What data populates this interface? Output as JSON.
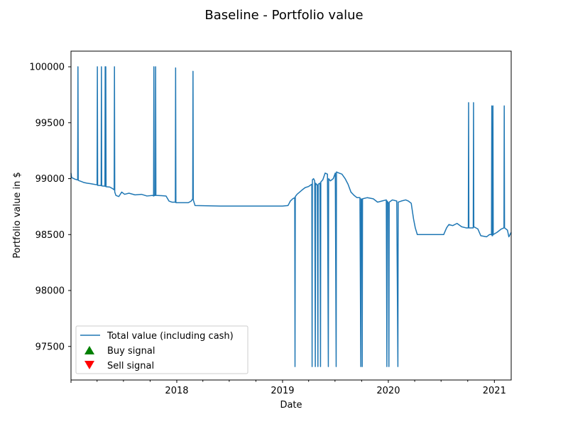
{
  "chart_data": {
    "type": "line",
    "title": "Baseline - Portfolio value",
    "xlabel": "Date",
    "ylabel": "Portfolio value in $",
    "xlim": [
      "2017-01-01",
      "2021-02-28"
    ],
    "ylim": [
      97200,
      100140
    ],
    "x_ticks": [
      "2018",
      "2019",
      "2020",
      "2021"
    ],
    "y_ticks": [
      "97500",
      "98000",
      "98500",
      "99000",
      "99500",
      "100000"
    ],
    "grid": false,
    "legend_position": "lower-left",
    "legend": [
      "Total value (including cash)",
      "Buy signal",
      "Sell signal"
    ],
    "colors": {
      "line": "#1f77b4",
      "buy": "#008000",
      "sell": "#ff0000"
    },
    "series": [
      {
        "name": "Total value (including cash)",
        "points": [
          [
            "2017-01-01",
            99050
          ],
          [
            "2017-01-03",
            99010
          ],
          [
            "2017-01-15",
            98995
          ],
          [
            "2017-01-22",
            98990
          ],
          [
            "2017-01-24",
            98990
          ],
          [
            "2017-01-25",
            100000
          ],
          [
            "2017-01-26",
            98985
          ],
          [
            "2017-02-05",
            98975
          ],
          [
            "2017-02-15",
            98965
          ],
          [
            "2017-02-25",
            98960
          ],
          [
            "2017-03-10",
            98955
          ],
          [
            "2017-03-20",
            98950
          ],
          [
            "2017-04-01",
            98945
          ],
          [
            "2017-04-02",
            100000
          ],
          [
            "2017-04-03",
            98940
          ],
          [
            "2017-04-15",
            98938
          ],
          [
            "2017-04-16",
            100000
          ],
          [
            "2017-04-17",
            98935
          ],
          [
            "2017-04-28",
            98933
          ],
          [
            "2017-04-29",
            100000
          ],
          [
            "2017-04-30",
            98930
          ],
          [
            "2017-05-01",
            100000
          ],
          [
            "2017-05-02",
            98928
          ],
          [
            "2017-05-15",
            98925
          ],
          [
            "2017-05-25",
            98910
          ],
          [
            "2017-05-30",
            98900
          ],
          [
            "2017-05-31",
            100000
          ],
          [
            "2017-06-01",
            98880
          ],
          [
            "2017-06-05",
            98850
          ],
          [
            "2017-06-15",
            98840
          ],
          [
            "2017-06-25",
            98880
          ],
          [
            "2017-07-05",
            98860
          ],
          [
            "2017-07-20",
            98870
          ],
          [
            "2017-08-10",
            98855
          ],
          [
            "2017-09-01",
            98860
          ],
          [
            "2017-09-20",
            98845
          ],
          [
            "2017-10-10",
            98850
          ],
          [
            "2017-10-13",
            98845
          ],
          [
            "2017-10-14",
            100000
          ],
          [
            "2017-10-15",
            98848
          ],
          [
            "2017-10-19",
            98850
          ],
          [
            "2017-10-20",
            100000
          ],
          [
            "2017-10-21",
            98850
          ],
          [
            "2017-11-10",
            98848
          ],
          [
            "2017-11-25",
            98845
          ],
          [
            "2017-12-05",
            98800
          ],
          [
            "2017-12-15",
            98790
          ],
          [
            "2017-12-27",
            98790
          ],
          [
            "2017-12-28",
            99990
          ],
          [
            "2017-12-29",
            98785
          ],
          [
            "2018-01-20",
            98785
          ],
          [
            "2018-02-10",
            98785
          ],
          [
            "2018-02-20",
            98800
          ],
          [
            "2018-02-25",
            98820
          ],
          [
            "2018-02-26",
            99960
          ],
          [
            "2018-02-27",
            98810
          ],
          [
            "2018-03-05",
            98760
          ],
          [
            "2018-06-01",
            98755
          ],
          [
            "2018-10-01",
            98755
          ],
          [
            "2019-01-01",
            98755
          ],
          [
            "2019-01-20",
            98760
          ],
          [
            "2019-01-28",
            98800
          ],
          [
            "2019-02-05",
            98820
          ],
          [
            "2019-02-12",
            98830
          ],
          [
            "2019-02-13",
            97320
          ],
          [
            "2019-02-14",
            98840
          ],
          [
            "2019-02-20",
            98860
          ],
          [
            "2019-03-01",
            98880
          ],
          [
            "2019-03-10",
            98900
          ],
          [
            "2019-03-20",
            98920
          ],
          [
            "2019-04-01",
            98930
          ],
          [
            "2019-04-12",
            98950
          ],
          [
            "2019-04-13",
            97320
          ],
          [
            "2019-04-14",
            98990
          ],
          [
            "2019-04-18",
            99000
          ],
          [
            "2019-04-22",
            98980
          ],
          [
            "2019-04-24",
            97320
          ],
          [
            "2019-04-25",
            98960
          ],
          [
            "2019-05-01",
            98940
          ],
          [
            "2019-05-03",
            97320
          ],
          [
            "2019-05-04",
            98950
          ],
          [
            "2019-05-10",
            98960
          ],
          [
            "2019-05-12",
            97320
          ],
          [
            "2019-05-13",
            98970
          ],
          [
            "2019-05-20",
            98990
          ],
          [
            "2019-05-28",
            99050
          ],
          [
            "2019-06-05",
            99040
          ],
          [
            "2019-06-08",
            97320
          ],
          [
            "2019-06-09",
            99000
          ],
          [
            "2019-06-15",
            98980
          ],
          [
            "2019-06-25",
            99000
          ],
          [
            "2019-07-02",
            99050
          ],
          [
            "2019-07-05",
            97320
          ],
          [
            "2019-07-06",
            99060
          ],
          [
            "2019-07-15",
            99050
          ],
          [
            "2019-07-25",
            99040
          ],
          [
            "2019-08-05",
            99000
          ],
          [
            "2019-08-15",
            98950
          ],
          [
            "2019-08-25",
            98880
          ],
          [
            "2019-09-05",
            98850
          ],
          [
            "2019-09-15",
            98830
          ],
          [
            "2019-09-25",
            98830
          ],
          [
            "2019-09-28",
            97320
          ],
          [
            "2019-09-29",
            98820
          ],
          [
            "2019-10-02",
            98810
          ],
          [
            "2019-10-03",
            97320
          ],
          [
            "2019-10-04",
            98820
          ],
          [
            "2019-10-20",
            98830
          ],
          [
            "2019-11-10",
            98820
          ],
          [
            "2019-11-25",
            98790
          ],
          [
            "2019-12-10",
            98800
          ],
          [
            "2019-12-25",
            98810
          ],
          [
            "2019-12-27",
            97320
          ],
          [
            "2019-12-28",
            98800
          ],
          [
            "2020-01-01",
            98780
          ],
          [
            "2020-01-03",
            97320
          ],
          [
            "2020-01-04",
            98790
          ],
          [
            "2020-01-15",
            98810
          ],
          [
            "2020-01-30",
            98800
          ],
          [
            "2020-02-03",
            97320
          ],
          [
            "2020-02-04",
            98790
          ],
          [
            "2020-02-15",
            98800
          ],
          [
            "2020-03-01",
            98810
          ],
          [
            "2020-03-10",
            98800
          ],
          [
            "2020-03-20",
            98780
          ],
          [
            "2020-03-28",
            98640
          ],
          [
            "2020-04-03",
            98560
          ],
          [
            "2020-04-10",
            98500
          ],
          [
            "2020-06-01",
            98500
          ],
          [
            "2020-07-10",
            98500
          ],
          [
            "2020-07-20",
            98560
          ],
          [
            "2020-07-28",
            98590
          ],
          [
            "2020-08-10",
            98580
          ],
          [
            "2020-08-25",
            98600
          ],
          [
            "2020-09-10",
            98570
          ],
          [
            "2020-09-25",
            98560
          ],
          [
            "2020-10-03",
            98560
          ],
          [
            "2020-10-04",
            99680
          ],
          [
            "2020-10-05",
            98560
          ],
          [
            "2020-10-20",
            98560
          ],
          [
            "2020-10-21",
            99680
          ],
          [
            "2020-10-22",
            98570
          ],
          [
            "2020-11-05",
            98550
          ],
          [
            "2020-11-15",
            98490
          ],
          [
            "2020-12-05",
            98480
          ],
          [
            "2020-12-15",
            98500
          ],
          [
            "2020-12-22",
            98500
          ],
          [
            "2020-12-23",
            99650
          ],
          [
            "2020-12-24",
            98490
          ],
          [
            "2020-12-26",
            98490
          ],
          [
            "2020-12-27",
            99650
          ],
          [
            "2020-12-28",
            98500
          ],
          [
            "2021-01-10",
            98520
          ],
          [
            "2021-01-25",
            98550
          ],
          [
            "2021-02-03",
            98560
          ],
          [
            "2021-02-04",
            99650
          ],
          [
            "2021-02-05",
            98560
          ],
          [
            "2021-02-15",
            98540
          ],
          [
            "2021-02-20",
            98480
          ],
          [
            "2021-02-28",
            98520
          ]
        ]
      }
    ]
  }
}
